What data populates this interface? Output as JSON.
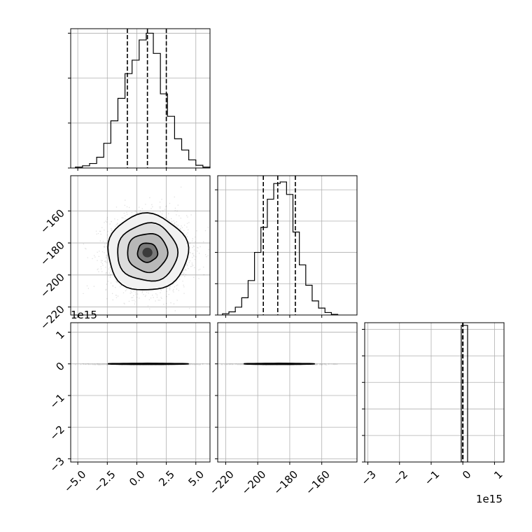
{
  "chart_data": {
    "type": "corner",
    "grid": true,
    "parameters": [
      {
        "range": [
          -5.6,
          6.2
        ],
        "ticks": [
          -5.0,
          -2.5,
          0.0,
          2.5,
          5.0
        ],
        "tick_labels": [
          "−5.0",
          "−2.5",
          "0.0",
          "2.5",
          "5.0"
        ]
      },
      {
        "range": [
          -225,
          -138
        ],
        "ticks": [
          -220,
          -200,
          -180,
          -160
        ],
        "tick_labels": [
          "−220",
          "−200",
          "−180",
          "−160"
        ]
      },
      {
        "range": [
          -3.1,
          1.3
        ],
        "ticks": [
          -3,
          -2,
          -1,
          0,
          1
        ],
        "tick_labels": [
          "−3",
          "−2",
          "−1",
          "0",
          "1"
        ],
        "offset_text": "1e15"
      }
    ],
    "histograms": [
      {
        "param": 0,
        "bin_edges": [
          -5.2,
          -4.6,
          -4.0,
          -3.4,
          -2.8,
          -2.2,
          -1.6,
          -1.0,
          -0.4,
          0.2,
          0.8,
          1.4,
          2.0,
          2.6,
          3.2,
          3.8,
          4.4,
          5.0,
          5.6,
          6.2
        ],
        "counts": [
          2,
          5,
          10,
          24,
          55,
          105,
          155,
          210,
          240,
          285,
          300,
          255,
          165,
          115,
          65,
          40,
          18,
          6,
          2
        ],
        "ymax": 310,
        "yticks": [
          0,
          100,
          200,
          300
        ],
        "quantiles": [
          -0.8,
          0.9,
          2.5
        ]
      },
      {
        "param": 1,
        "bin_edges": [
          -222,
          -218,
          -214,
          -210,
          -206,
          -202,
          -198,
          -194,
          -190,
          -186,
          -182,
          -178,
          -174,
          -170,
          -166,
          -162,
          -158,
          -154,
          -150
        ],
        "counts": [
          4,
          10,
          25,
          55,
          110,
          200,
          280,
          370,
          420,
          425,
          385,
          265,
          160,
          95,
          45,
          22,
          8,
          2
        ],
        "ymax": 445,
        "yticks": [
          0,
          100,
          200,
          300,
          400
        ],
        "quantiles": [
          -196.5,
          -187.5,
          -176.5
        ]
      },
      {
        "param": 2,
        "bin_edges": [
          -0.05,
          0.05,
          0.15
        ],
        "counts": [
          515,
          515
        ],
        "ymax": 525,
        "yticks": [
          0,
          100,
          200,
          300,
          400,
          500
        ],
        "quantiles": [
          -0.005,
          0.0,
          0.005
        ]
      }
    ],
    "pairs": [
      {
        "x_param": 0,
        "y_param": 1,
        "center": [
          0.9,
          -186
        ],
        "sigma": [
          1.7,
          12
        ],
        "rho": 0.0,
        "levels": [
          0.5,
          1.0,
          1.5,
          2.0
        ]
      },
      {
        "x_param": 0,
        "y_param": 2,
        "center": [
          0.9,
          0.0
        ],
        "sigma": [
          1.7,
          0.008
        ],
        "rho": 0.0,
        "levels": [
          0.5,
          1.0,
          1.5,
          2.0
        ]
      },
      {
        "x_param": 1,
        "y_param": 2,
        "center": [
          -187,
          0.0
        ],
        "sigma": [
          11,
          0.008
        ],
        "rho": 0.0,
        "levels": [
          0.5,
          1.0,
          1.5,
          2.0
        ]
      }
    ]
  }
}
